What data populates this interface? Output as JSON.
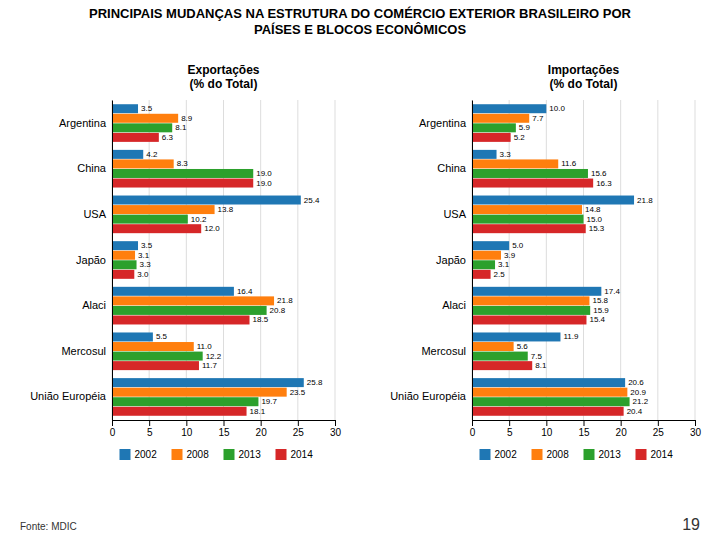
{
  "title": "PRINCIPAIS MUDANÇAS NA ESTRUTURA DO COMÉRCIO EXTERIOR BRASILEIRO POR\nPAÍSES E BLOCOS ECONÔMICOS",
  "annotations": [
    "Fonte: MDIC",
    "19"
  ],
  "chart_data": [
    {
      "type": "bar",
      "orientation": "horizontal",
      "title": "Exportações\n(% do Total)",
      "categories": [
        "Argentina",
        "China",
        "USA",
        "Japão",
        "Alaci",
        "Mercosul",
        "União Européia"
      ],
      "series": [
        {
          "name": "2002",
          "values": [
            3.5,
            4.2,
            25.4,
            3.5,
            16.4,
            5.5,
            25.8
          ],
          "value_labels": [
            "3.5",
            "4.2",
            "25.4",
            "3.5",
            "16.4",
            "5.5",
            "25.8"
          ]
        },
        {
          "name": "2008",
          "values": [
            8.9,
            8.3,
            13.8,
            3.1,
            21.8,
            11.0,
            23.5
          ],
          "value_labels": [
            "8.9",
            "8.3",
            "13.8",
            "3.1",
            "21.8",
            "11.0",
            "23.5"
          ]
        },
        {
          "name": "2013",
          "values": [
            8.1,
            19.0,
            10.2,
            3.3,
            20.8,
            12.2,
            19.7
          ],
          "value_labels": [
            "8.1",
            "19.0",
            "10.2",
            "3.3",
            "20.8",
            "12.2",
            "19.7"
          ]
        },
        {
          "name": "2014",
          "values": [
            6.3,
            19.0,
            12.0,
            3.0,
            18.5,
            11.7,
            18.1
          ],
          "value_labels": [
            "6.3",
            "19.0",
            "12.0",
            "3.0",
            "18.5",
            "11.7",
            "18.1"
          ]
        }
      ],
      "xlim": [
        0,
        30
      ],
      "xticks": [
        0,
        5,
        10,
        15,
        20,
        25,
        30
      ],
      "grid": true,
      "data_labels": true,
      "legend": "bottom"
    },
    {
      "type": "bar",
      "orientation": "horizontal",
      "title": "Importações\n(% do Total)",
      "categories": [
        "Argentina",
        "China",
        "USA",
        "Japão",
        "Alaci",
        "Mercosul",
        "União Européia"
      ],
      "series": [
        {
          "name": "2002",
          "values": [
            10.0,
            3.3,
            21.8,
            5.0,
            17.4,
            11.9,
            20.6
          ],
          "value_labels": [
            "10.0",
            "3.3",
            "21.8",
            "5.0",
            "17.4",
            "11.9",
            "20.6"
          ]
        },
        {
          "name": "2008",
          "values": [
            7.7,
            11.6,
            14.8,
            3.9,
            15.8,
            5.6,
            20.9
          ],
          "value_labels": [
            "7.7",
            "11.6",
            "14.8",
            "3.9",
            "15.8",
            "5.6",
            "20.9"
          ]
        },
        {
          "name": "2013",
          "values": [
            5.9,
            15.6,
            15.0,
            3.1,
            15.9,
            7.5,
            21.2
          ],
          "value_labels": [
            "5.9",
            "15.6",
            "15.0",
            "3.1",
            "15.9",
            "7.5",
            "21.2"
          ]
        },
        {
          "name": "2014",
          "values": [
            5.2,
            16.3,
            15.3,
            2.5,
            15.4,
            8.1,
            20.4
          ],
          "value_labels": [
            "5.2",
            "16.3",
            "15.3",
            "2.5",
            "15.4",
            "8.1",
            "20.4"
          ]
        }
      ],
      "xlim": [
        0,
        30
      ],
      "xticks": [
        0,
        5,
        10,
        15,
        20,
        25,
        30
      ],
      "grid": true,
      "data_labels": true,
      "legend": "bottom"
    }
  ]
}
